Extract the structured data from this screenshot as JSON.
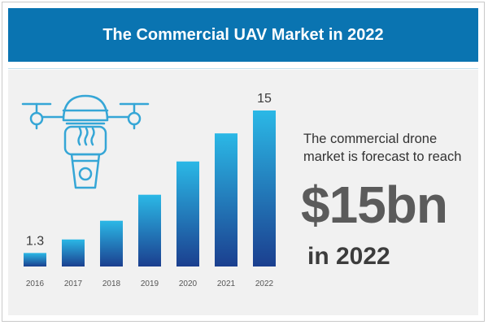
{
  "title": "The Commercial UAV Market in 2022",
  "text": {
    "line1": "The commercial drone",
    "line2": "market is forecast to reach",
    "big_value": "$15bn",
    "year_text": "in 2022"
  },
  "icon": "drone-icon",
  "colors": {
    "banner": "#0a74b1",
    "bar_top": "#2bb8e6",
    "bar_bottom": "#1b3f8f",
    "icon": "#35a6d6"
  },
  "chart_data": {
    "type": "bar",
    "categories": [
      "2016",
      "2017",
      "2018",
      "2019",
      "2020",
      "2021",
      "2022"
    ],
    "values": [
      1.3,
      2.6,
      4.4,
      6.9,
      10.1,
      12.8,
      15
    ],
    "data_labels": [
      "1.3",
      "",
      "",
      "",
      "",
      "",
      "15"
    ],
    "title": "",
    "xlabel": "",
    "ylabel": "",
    "ylim": [
      0,
      15
    ],
    "grid": false,
    "legend": "none"
  }
}
